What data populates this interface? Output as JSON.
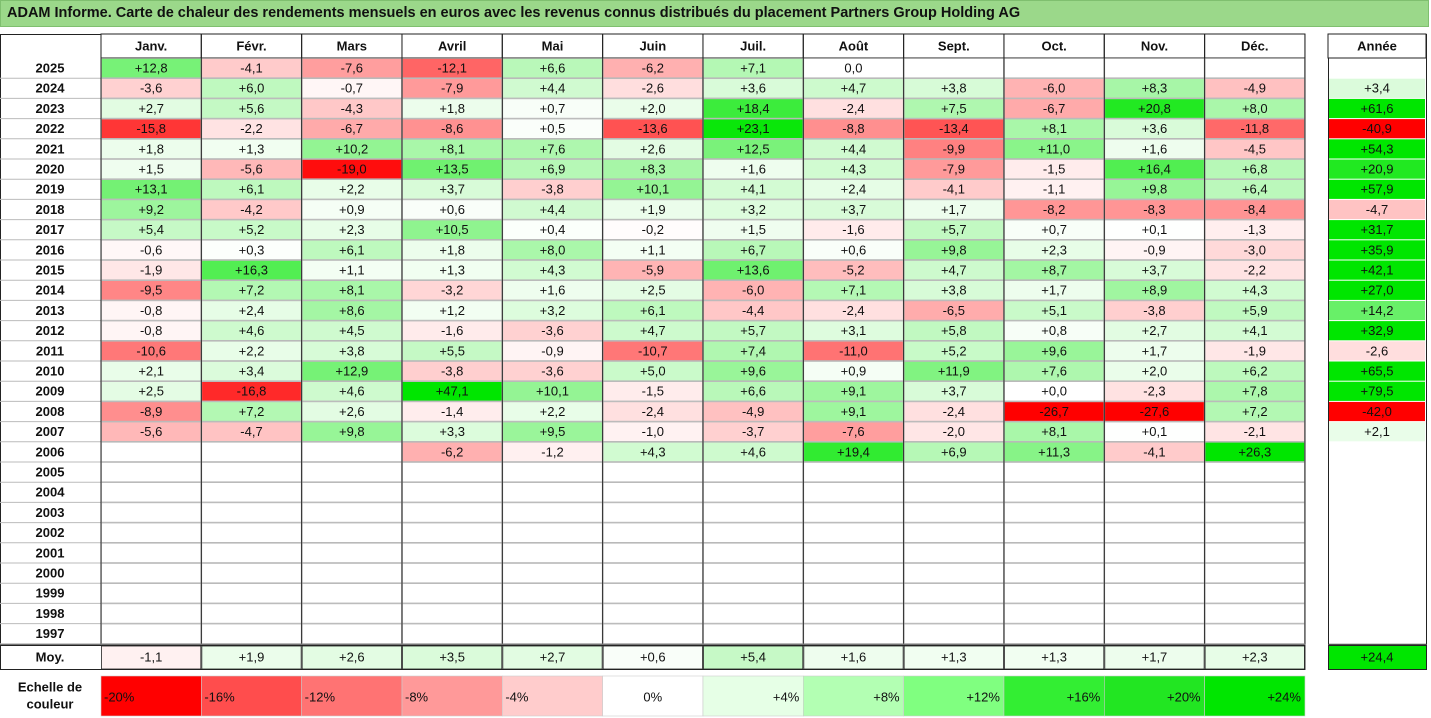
{
  "title": "ADAM Informe. Carte de chaleur des rendements mensuels en euros avec les revenus connus distribués du placement Partners Group Holding AG",
  "chart_data": {
    "type": "heatmap",
    "months": [
      "Janv.",
      "Févr.",
      "Mars",
      "Avril",
      "Mai",
      "Juin",
      "Juil.",
      "Août",
      "Sept.",
      "Oct.",
      "Nov.",
      "Déc."
    ],
    "year_header": "Année",
    "rows": [
      {
        "year": "2025",
        "values": [
          "+12,8",
          "-4,1",
          "-7,6",
          "-12,1",
          "+6,6",
          "-6,2",
          "+7,1",
          "0,0",
          "",
          "",
          "",
          ""
        ],
        "annual": ""
      },
      {
        "year": "2024",
        "values": [
          "-3,6",
          "+6,0",
          "-0,7",
          "-7,9",
          "+4,4",
          "-2,6",
          "+3,6",
          "+4,7",
          "+3,8",
          "-6,0",
          "+8,3",
          "-4,9"
        ],
        "annual": "+3,4"
      },
      {
        "year": "2023",
        "values": [
          "+2,7",
          "+5,6",
          "-4,3",
          "+1,8",
          "+0,7",
          "+2,0",
          "+18,4",
          "-2,4",
          "+7,5",
          "-6,7",
          "+20,8",
          "+8,0"
        ],
        "annual": "+61,6"
      },
      {
        "year": "2022",
        "values": [
          "-15,8",
          "-2,2",
          "-6,7",
          "-8,6",
          "+0,5",
          "-13,6",
          "+23,1",
          "-8,8",
          "-13,4",
          "+8,1",
          "+3,6",
          "-11,8"
        ],
        "annual": "-40,9"
      },
      {
        "year": "2021",
        "values": [
          "+1,8",
          "+1,3",
          "+10,2",
          "+8,1",
          "+7,6",
          "+2,6",
          "+12,5",
          "+4,4",
          "-9,9",
          "+11,0",
          "+1,6",
          "-4,5"
        ],
        "annual": "+54,3"
      },
      {
        "year": "2020",
        "values": [
          "+1,5",
          "-5,6",
          "-19,0",
          "+13,5",
          "+6,9",
          "+8,3",
          "+1,6",
          "+4,3",
          "-7,9",
          "-1,5",
          "+16,4",
          "+6,8"
        ],
        "annual": "+20,9"
      },
      {
        "year": "2019",
        "values": [
          "+13,1",
          "+6,1",
          "+2,2",
          "+3,7",
          "-3,8",
          "+10,1",
          "+4,1",
          "+2,4",
          "-4,1",
          "-1,1",
          "+9,8",
          "+6,4"
        ],
        "annual": "+57,9"
      },
      {
        "year": "2018",
        "values": [
          "+9,2",
          "-4,2",
          "+0,9",
          "+0,6",
          "+4,4",
          "+1,9",
          "+3,2",
          "+3,7",
          "+1,7",
          "-8,2",
          "-8,3",
          "-8,4"
        ],
        "annual": "-4,7"
      },
      {
        "year": "2017",
        "values": [
          "+5,4",
          "+5,2",
          "+2,3",
          "+10,5",
          "+0,4",
          "-0,2",
          "+1,5",
          "-1,6",
          "+5,7",
          "+0,7",
          "+0,1",
          "-1,3"
        ],
        "annual": "+31,7"
      },
      {
        "year": "2016",
        "values": [
          "-0,6",
          "+0,3",
          "+6,1",
          "+1,8",
          "+8,0",
          "+1,1",
          "+6,7",
          "+0,6",
          "+9,8",
          "+2,3",
          "-0,9",
          "-3,0"
        ],
        "annual": "+35,9"
      },
      {
        "year": "2015",
        "values": [
          "-1,9",
          "+16,3",
          "+1,1",
          "+1,3",
          "+4,3",
          "-5,9",
          "+13,6",
          "-5,2",
          "+4,7",
          "+8,7",
          "+3,7",
          "-2,2"
        ],
        "annual": "+42,1"
      },
      {
        "year": "2014",
        "values": [
          "-9,5",
          "+7,2",
          "+8,1",
          "-3,2",
          "+1,6",
          "+2,5",
          "-6,0",
          "+7,1",
          "+3,8",
          "+1,7",
          "+8,9",
          "+4,3"
        ],
        "annual": "+27,0"
      },
      {
        "year": "2013",
        "values": [
          "-0,8",
          "+2,4",
          "+8,6",
          "+1,2",
          "+3,2",
          "+6,1",
          "-4,4",
          "-2,4",
          "-6,5",
          "+5,1",
          "-3,8",
          "+5,9"
        ],
        "annual": "+14,2"
      },
      {
        "year": "2012",
        "values": [
          "-0,8",
          "+4,6",
          "+4,5",
          "-1,6",
          "-3,6",
          "+4,7",
          "+5,7",
          "+3,1",
          "+5,8",
          "+0,8",
          "+2,7",
          "+4,1"
        ],
        "annual": "+32,9"
      },
      {
        "year": "2011",
        "values": [
          "-10,6",
          "+2,2",
          "+3,8",
          "+5,5",
          "-0,9",
          "-10,7",
          "+7,4",
          "-11,0",
          "+5,2",
          "+9,6",
          "+1,7",
          "-1,9"
        ],
        "annual": "-2,6"
      },
      {
        "year": "2010",
        "values": [
          "+2,1",
          "+3,4",
          "+12,9",
          "-3,8",
          "-3,6",
          "+5,0",
          "+9,6",
          "+0,9",
          "+11,9",
          "+7,6",
          "+2,0",
          "+6,2"
        ],
        "annual": "+65,5"
      },
      {
        "year": "2009",
        "values": [
          "+2,5",
          "-16,8",
          "+4,6",
          "+47,1",
          "+10,1",
          "-1,5",
          "+6,6",
          "+9,1",
          "+3,7",
          "+0,0",
          "-2,3",
          "+7,8"
        ],
        "annual": "+79,5"
      },
      {
        "year": "2008",
        "values": [
          "-8,9",
          "+7,2",
          "+2,6",
          "-1,4",
          "+2,2",
          "-2,4",
          "-4,9",
          "+9,1",
          "-2,4",
          "-26,7",
          "-27,6",
          "+7,2"
        ],
        "annual": "-42,0"
      },
      {
        "year": "2007",
        "values": [
          "-5,6",
          "-4,7",
          "+9,8",
          "+3,3",
          "+9,5",
          "-1,0",
          "-3,7",
          "-7,6",
          "-2,0",
          "+8,1",
          "+0,1",
          "-2,1"
        ],
        "annual": "+2,1"
      },
      {
        "year": "2006",
        "values": [
          "",
          "",
          "",
          "-6,2",
          "-1,2",
          "+4,3",
          "+4,6",
          "+19,4",
          "+6,9",
          "+11,3",
          "-4,1",
          "+26,3"
        ],
        "annual": ""
      },
      {
        "year": "2005",
        "values": [
          "",
          "",
          "",
          "",
          "",
          "",
          "",
          "",
          "",
          "",
          "",
          ""
        ],
        "annual": ""
      },
      {
        "year": "2004",
        "values": [
          "",
          "",
          "",
          "",
          "",
          "",
          "",
          "",
          "",
          "",
          "",
          ""
        ],
        "annual": ""
      },
      {
        "year": "2003",
        "values": [
          "",
          "",
          "",
          "",
          "",
          "",
          "",
          "",
          "",
          "",
          "",
          ""
        ],
        "annual": ""
      },
      {
        "year": "2002",
        "values": [
          "",
          "",
          "",
          "",
          "",
          "",
          "",
          "",
          "",
          "",
          "",
          ""
        ],
        "annual": ""
      },
      {
        "year": "2001",
        "values": [
          "",
          "",
          "",
          "",
          "",
          "",
          "",
          "",
          "",
          "",
          "",
          ""
        ],
        "annual": ""
      },
      {
        "year": "2000",
        "values": [
          "",
          "",
          "",
          "",
          "",
          "",
          "",
          "",
          "",
          "",
          "",
          ""
        ],
        "annual": ""
      },
      {
        "year": "1999",
        "values": [
          "",
          "",
          "",
          "",
          "",
          "",
          "",
          "",
          "",
          "",
          "",
          ""
        ],
        "annual": ""
      },
      {
        "year": "1998",
        "values": [
          "",
          "",
          "",
          "",
          "",
          "",
          "",
          "",
          "",
          "",
          "",
          ""
        ],
        "annual": ""
      },
      {
        "year": "1997",
        "values": [
          "",
          "",
          "",
          "",
          "",
          "",
          "",
          "",
          "",
          "",
          "",
          ""
        ],
        "annual": ""
      }
    ],
    "average": {
      "label": "Moy.",
      "values": [
        "-1,1",
        "+1,9",
        "+2,6",
        "+3,5",
        "+2,7",
        "+0,6",
        "+5,4",
        "+1,6",
        "+1,3",
        "+1,3",
        "+1,7",
        "+2,3"
      ],
      "annual": "+24,4"
    },
    "scale": {
      "label_line1": "Echelle de",
      "label_line2": "couleur",
      "labels": [
        "-20%",
        "-16%",
        "-12%",
        "-8%",
        "-4%",
        "0%",
        "+4%",
        "+8%",
        "+12%",
        "+16%",
        "+20%",
        "+24%"
      ],
      "colors": [
        "#ff0000",
        "#ff4d4d",
        "#ff7373",
        "#ff9999",
        "#ffcccc",
        "#ffffff",
        "#e6ffe6",
        "#b3ffb3",
        "#80ff80",
        "#33ee33",
        "#22e622",
        "#00e600"
      ]
    },
    "colors": {
      "neg_max": "#ff0000",
      "zero": "#ffffff",
      "pos_max": "#00e600",
      "title_bg": "#9bd88a"
    }
  }
}
